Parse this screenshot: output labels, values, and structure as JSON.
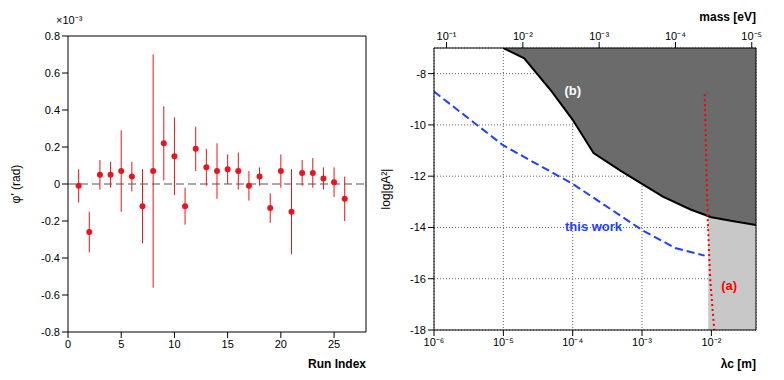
{
  "chart_data": [
    {
      "type": "scatter",
      "x_label": "Run Index",
      "y_label": "φ' (rad)",
      "annotations": [
        {
          "text": "×10⁻³"
        }
      ],
      "x": [
        1,
        2,
        3,
        4,
        5,
        6,
        7,
        8,
        9,
        10,
        11,
        12,
        13,
        14,
        15,
        16,
        17,
        18,
        19,
        20,
        21,
        22,
        23,
        24,
        25,
        26
      ],
      "values": [
        -0.01,
        -0.26,
        0.05,
        0.05,
        0.07,
        0.04,
        -0.12,
        0.07,
        0.22,
        0.15,
        -0.12,
        0.19,
        0.09,
        0.07,
        0.08,
        0.07,
        -0.01,
        0.04,
        -0.13,
        0.07,
        -0.15,
        0.06,
        0.06,
        0.03,
        0.01,
        -0.08
      ],
      "errors": [
        0.09,
        0.11,
        0.08,
        0.07,
        0.22,
        0.08,
        0.2,
        0.63,
        0.2,
        0.21,
        0.1,
        0.12,
        0.1,
        0.15,
        0.08,
        0.1,
        0.08,
        0.05,
        0.08,
        0.09,
        0.23,
        0.07,
        0.08,
        0.06,
        0.08,
        0.12
      ],
      "color": "#e8141e",
      "marker": "circle",
      "reference_lines": [
        {
          "y": 0,
          "line_style": "dashed"
        }
      ],
      "xlim": [
        0,
        28
      ],
      "xticks": [
        0,
        5,
        10,
        15,
        20,
        25
      ],
      "ylim": [
        -0.8,
        0.8
      ],
      "yticks": [
        -0.8,
        -0.6,
        -0.4,
        -0.2,
        0,
        0.2,
        0.4,
        0.6,
        0.8
      ]
    },
    {
      "type": "line",
      "x_label": "λc [m]",
      "y_label": "log|gA²|",
      "x2_label": "mass [eV]",
      "log": "x",
      "grid": true,
      "xlim": [
        1e-06,
        0.044
      ],
      "xticks": [
        {
          "value": 1e-06,
          "label": "10⁻⁶"
        },
        {
          "value": 1e-05,
          "label": "10⁻⁵"
        },
        {
          "value": 0.0001,
          "label": "10⁻⁴"
        },
        {
          "value": 0.001,
          "label": "10⁻³"
        },
        {
          "value": 0.01,
          "label": "10⁻²"
        }
      ],
      "x2lim": [
        0.146,
        8.8e-06
      ],
      "x2ticks": [
        {
          "value": 0.1,
          "label": "10⁻¹"
        },
        {
          "value": 0.01,
          "label": "10⁻²"
        },
        {
          "value": 0.001,
          "label": "10⁻³"
        },
        {
          "value": 0.0001,
          "label": "10⁻⁴"
        },
        {
          "value": 1e-05,
          "label": "10⁻⁵"
        }
      ],
      "ylim": [
        -18,
        -7
      ],
      "yticks": [
        -18,
        -16,
        -14,
        -12,
        -10,
        -8
      ],
      "series": [
        {
          "type": "area_above",
          "color": "#6b6b6b",
          "x": [
            1e-05,
            2e-05,
            5e-05,
            0.0001,
            0.0002,
            0.0005,
            0.001,
            0.002,
            0.005,
            0.01,
            0.02,
            0.044
          ],
          "values": [
            -7,
            -7.4,
            -8.7,
            -9.8,
            -11.1,
            -11.8,
            -12.3,
            -12.8,
            -13.3,
            -13.6,
            -13.75,
            -13.9
          ]
        },
        {
          "type": "area_below",
          "color": "#c8c8c8",
          "x": [
            0.009,
            0.01,
            0.02,
            0.044
          ],
          "values": [
            -13.55,
            -13.6,
            -13.75,
            -13.9
          ]
        },
        {
          "type": "line",
          "color": "#000000",
          "line_style": "solid",
          "x": [
            1e-05,
            2e-05,
            5e-05,
            0.0001,
            0.0002,
            0.0005,
            0.001,
            0.002,
            0.005,
            0.01,
            0.02,
            0.044
          ],
          "values": [
            -7,
            -7.4,
            -8.7,
            -9.8,
            -11.1,
            -11.8,
            -12.3,
            -12.8,
            -13.3,
            -13.6,
            -13.75,
            -13.9
          ]
        },
        {
          "type": "line",
          "color": "#1f3fff",
          "line_style": "dashed",
          "x": [
            1e-06,
            1e-05,
            0.0001,
            0.001,
            0.003,
            0.008
          ],
          "values": [
            -8.7,
            -10.8,
            -12.3,
            -14.1,
            -14.8,
            -15.1
          ]
        },
        {
          "type": "line",
          "color": "#ff0000",
          "line_style": "dotted",
          "x": [
            0.008,
            0.0088,
            0.0096,
            0.011
          ],
          "values": [
            -8.8,
            -13.5,
            -16,
            -18
          ]
        }
      ],
      "annotations": [
        {
          "text": "(b)",
          "x": 0.0001,
          "y": -8.7,
          "color": "#ffffff"
        },
        {
          "text": "this work",
          "x": 0.0002,
          "y": -14.0,
          "color": "#1f3fff"
        },
        {
          "text": "(a)",
          "x": 0.018,
          "y": -16.3,
          "color": "#ff0000"
        }
      ]
    }
  ]
}
